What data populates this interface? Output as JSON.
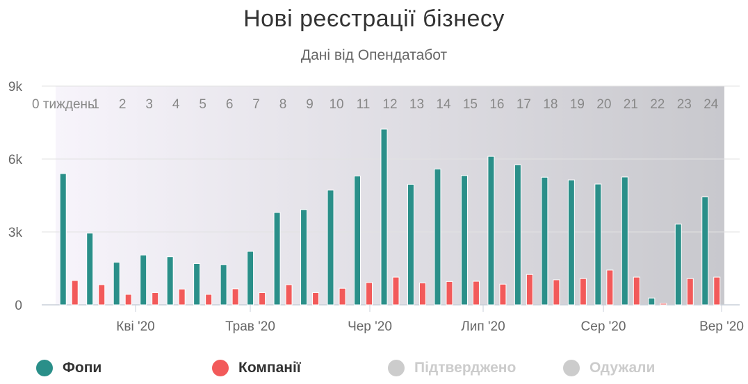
{
  "title": "Нові реєстрації бізнесу",
  "subtitle": "Дані від Опендатабот",
  "colors": {
    "fopy": "#2a8f89",
    "companies": "#f25a5a",
    "inactive": "#cccccc",
    "band_start": "#f7f4fb",
    "band_end": "#c8c8cd"
  },
  "legend": {
    "items": [
      {
        "label": "Фопи",
        "color": "#2a8f89",
        "active": true
      },
      {
        "label": "Компанії",
        "color": "#f25a5a",
        "active": true
      },
      {
        "label": "Підтверджено",
        "color": "#cccccc",
        "active": false
      },
      {
        "label": "Одужали",
        "color": "#cccccc",
        "active": false
      }
    ]
  },
  "chart_data": {
    "type": "bar",
    "title": "Нові реєстрації бізнесу",
    "subtitle": "Дані від Опендатабот",
    "y_ticks": [
      "0",
      "3k",
      "6k",
      "9k"
    ],
    "ylim": [
      0,
      9000
    ],
    "x_month_labels": [
      "Кві '20",
      "Трав '20",
      "Чер '20",
      "Лип '20",
      "Сер '20",
      "Вер '20"
    ],
    "week_labels": [
      "0 тиждень",
      "1",
      "2",
      "3",
      "4",
      "5",
      "6",
      "7",
      "8",
      "9",
      "10",
      "11",
      "12",
      "13",
      "14",
      "15",
      "16",
      "17",
      "18",
      "19",
      "20",
      "21",
      "22",
      "23",
      "24"
    ],
    "grid": true,
    "legend_position": "bottom",
    "series": [
      {
        "name": "Фопи",
        "color": "#2a8f89",
        "values": [
          5400,
          2950,
          1750,
          2050,
          1980,
          1700,
          1650,
          2200,
          3800,
          3920,
          4720,
          5300,
          7230,
          4960,
          5590,
          5320,
          6110,
          5760,
          5250,
          5140,
          4970,
          5260,
          280,
          3320,
          4440
        ]
      },
      {
        "name": "Компанії",
        "color": "#f25a5a",
        "values": [
          1000,
          830,
          430,
          500,
          650,
          430,
          660,
          500,
          830,
          500,
          680,
          920,
          1140,
          900,
          960,
          970,
          850,
          1250,
          1030,
          1080,
          1430,
          1140,
          60,
          1080,
          1140
        ]
      },
      {
        "name": "Підтверджено",
        "color": "#cccccc",
        "values": []
      },
      {
        "name": "Одужали",
        "color": "#cccccc",
        "values": []
      }
    ]
  }
}
